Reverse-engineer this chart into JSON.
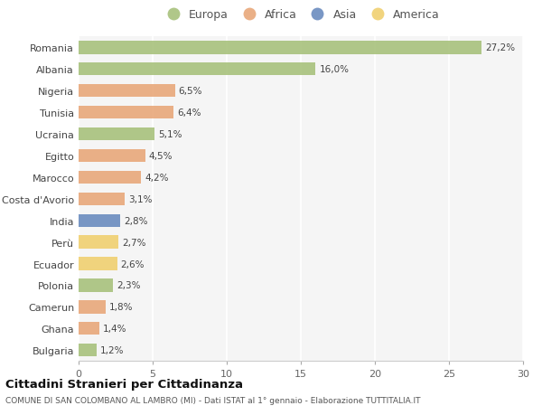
{
  "countries": [
    "Romania",
    "Albania",
    "Nigeria",
    "Tunisia",
    "Ucraina",
    "Egitto",
    "Marocco",
    "Costa d'Avorio",
    "India",
    "Perù",
    "Ecuador",
    "Polonia",
    "Camerun",
    "Ghana",
    "Bulgaria"
  ],
  "values": [
    27.2,
    16.0,
    6.5,
    6.4,
    5.1,
    4.5,
    4.2,
    3.1,
    2.8,
    2.7,
    2.6,
    2.3,
    1.8,
    1.4,
    1.2
  ],
  "labels": [
    "27,2%",
    "16,0%",
    "6,5%",
    "6,4%",
    "5,1%",
    "4,5%",
    "4,2%",
    "3,1%",
    "2,8%",
    "2,7%",
    "2,6%",
    "2,3%",
    "1,8%",
    "1,4%",
    "1,2%"
  ],
  "continents": [
    "Europa",
    "Europa",
    "Africa",
    "Africa",
    "Europa",
    "Africa",
    "Africa",
    "Africa",
    "Asia",
    "America",
    "America",
    "Europa",
    "Africa",
    "Africa",
    "Europa"
  ],
  "colors": {
    "Europa": "#a8c17c",
    "Africa": "#e8a87a",
    "Asia": "#6b8cbf",
    "America": "#f0d070"
  },
  "legend_order": [
    "Europa",
    "Africa",
    "Asia",
    "America"
  ],
  "title": "Cittadini Stranieri per Cittadinanza",
  "subtitle": "COMUNE DI SAN COLOMBANO AL LAMBRO (MI) - Dati ISTAT al 1° gennaio - Elaborazione TUTTITALIA.IT",
  "xlim": [
    0,
    30
  ],
  "xticks": [
    0,
    5,
    10,
    15,
    20,
    25,
    30
  ],
  "background_color": "#ffffff",
  "plot_bg_color": "#f5f5f5"
}
